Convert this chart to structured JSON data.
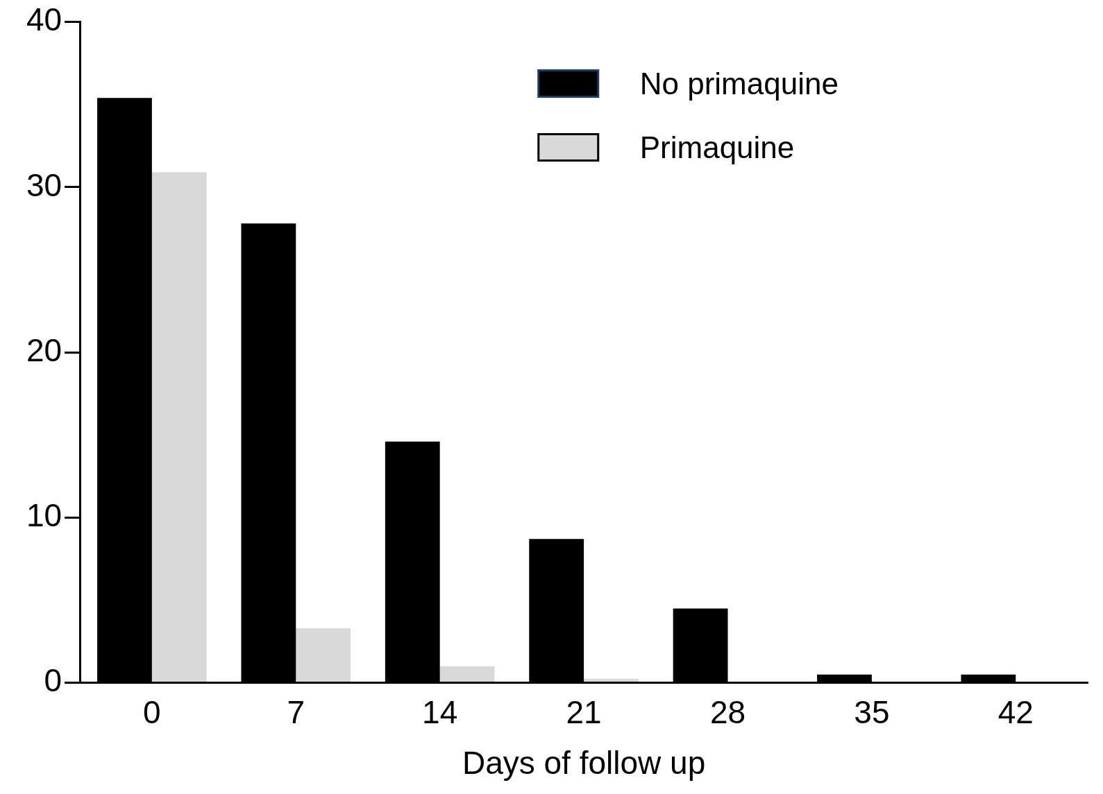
{
  "chart_data": {
    "type": "bar",
    "xlabel": "Days of follow up",
    "categories": [
      "0",
      "7",
      "14",
      "21",
      "28",
      "35",
      "42"
    ],
    "series": [
      {
        "name": "No primaquine",
        "color": "#000000",
        "values": [
          35.4,
          27.8,
          14.6,
          8.7,
          4.5,
          0.5,
          0.5
        ]
      },
      {
        "name": "Primaquine",
        "color": "#d9d9d9",
        "values": [
          30.9,
          3.3,
          1.0,
          0.25,
          0,
          0,
          0
        ]
      }
    ],
    "ylim": [
      0,
      40
    ],
    "yticks": [
      0,
      10,
      20,
      30,
      40
    ],
    "grid": false,
    "legend": "top right"
  }
}
